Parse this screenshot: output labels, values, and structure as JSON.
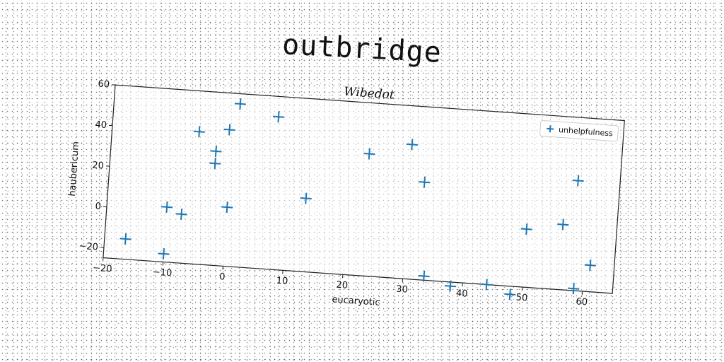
{
  "page_title": "outbridge",
  "chart_data": {
    "type": "scatter",
    "title": "Wibedot",
    "xlabel": "eucaryotic",
    "ylabel": "haubericum",
    "xlim": [
      -20,
      65
    ],
    "ylim": [
      -25,
      60
    ],
    "xticks": [
      -20,
      -10,
      0,
      10,
      20,
      30,
      40,
      50,
      60
    ],
    "yticks": [
      -20,
      0,
      20,
      40,
      60
    ],
    "grid": false,
    "legend_position": "top-right",
    "marker": "+",
    "color": "#1f77b4",
    "series": [
      {
        "name": "unhelpfulness",
        "x": [
          -16.5,
          -10,
          -10,
          -7.5,
          -5.5,
          -2.5,
          -2.5,
          -0.5,
          0,
          1,
          7.5,
          13,
          23,
          30,
          32.5,
          33.5,
          38,
          44,
          48,
          50,
          56,
          58,
          58.5,
          61
        ],
        "y": [
          -15,
          -21,
          2,
          -1,
          40,
          31,
          25,
          42,
          4,
          55,
          50,
          11,
          35,
          41,
          23,
          -23,
          -27,
          -25,
          -29,
          3.5,
          7,
          29,
          -24,
          -12
        ]
      }
    ]
  }
}
